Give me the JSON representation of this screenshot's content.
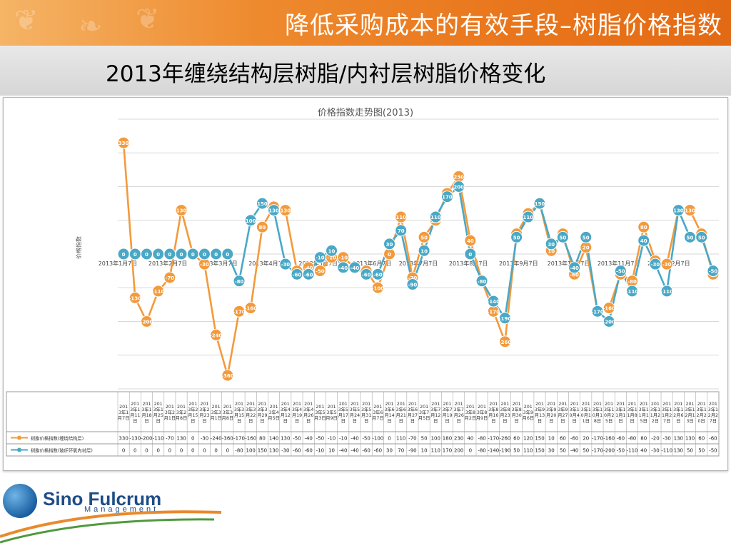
{
  "header": {
    "title": "降低采购成本的有效手段–树脂价格指数"
  },
  "subtitle": "2013年缠绕结构层树脂/内衬层树脂价格变化",
  "logo": {
    "name": "Sino Fulcrum",
    "sub": "Management"
  },
  "colors": {
    "series1": "#f39a3c",
    "series2": "#4aa8c6",
    "banner": "#ee8a2e"
  },
  "chart_data": {
    "type": "line",
    "title": "价格指数走势图(2013)",
    "ylabel": "价格指数",
    "ylim": [
      -400,
      400
    ],
    "x": [
      "2013年1月7日",
      "2013年1月11日",
      "2013年1月18日",
      "2013年1月25日",
      "2013年2月1日",
      "2013年2月8日",
      "2013年2月15日",
      "2013年2月23日",
      "2013年3月1日",
      "2013年3月8日",
      "2013年3月15日",
      "2013年3月22日",
      "2013年3月29日",
      "2013年4月5日",
      "2013年4月12日",
      "2013年4月19日",
      "2013年4月26日",
      "2013年5月3日",
      "2013年5月9日",
      "2013年5月17日",
      "2013年5月24日",
      "2013年5月31日",
      "2013年6月7日",
      "2013年6月14日",
      "2013年6月21日",
      "2013年6月27日",
      "2013年7月5日",
      "2013年7月12日",
      "2013年7月19日",
      "2013年7月26日",
      "2013年8月2日",
      "2013年8月9日",
      "2013年8月16日",
      "2013年8月23日",
      "2013年8月30日",
      "2013年9月6日",
      "2013年9月13日",
      "2013年9月20日",
      "2013年9月27日",
      "2013年10月4日",
      "2013年10月11日",
      "2013年10月18日",
      "2013年10月25日",
      "2013年11月1日",
      "2013年11月8日",
      "2013年11月15日",
      "2013年11月22日",
      "2013年11月27日",
      "2013年12月6日",
      "2013年12月13日",
      "2013年12月20日",
      "2013年12月27日"
    ],
    "table_labels": [
      "2013年1月7日",
      "2013年1月11日",
      "2013年1月18日",
      "2013年1月25日",
      "2013年2月1日",
      "2013年2月8日",
      "2013年2月15日",
      "2013年2月23日",
      "2013年3月1日",
      "2013年3月8日",
      "2013年3月15日",
      "2013年3月22日",
      "2013年3月29日",
      "2013年4月5日",
      "2013年4月12日",
      "2013年4月19日",
      "2013年4月26日",
      "2013年5月3日",
      "2013年5月9日",
      "2013年5月17日",
      "2013年5月24日",
      "2013年5月31日",
      "2013年6月7日",
      "2013年6月14日",
      "2013年6月21日",
      "2013年6月27日",
      "2013年7月5日",
      "2013年7月12日",
      "2013年7月19日",
      "2013年7月26日",
      "2013年8月2日",
      "2013年8月9日",
      "2013年8月16日",
      "2013年8月23日",
      "2013年8月30日",
      "2013年9月6日",
      "2013年9月13日",
      "2013年9月20日",
      "2013年9月27日",
      "2013年10月4日",
      "2013年10月11日",
      "2013年10月18日",
      "2013年10月25日",
      "2013年11月1日",
      "2013年11月8日",
      "2013年11月15日",
      "2013年11月22日",
      "2013年11月27日",
      "2013年12月6日",
      "2013年12月13日",
      "2013年12月20日",
      "2013年12月27日"
    ],
    "axis_labels": [
      "2013年1月7日",
      "2013年2月7日",
      "2013年3月7日",
      "2013年4月7日",
      "2013年5月7日",
      "2013年6月7日",
      "2013年7月7日",
      "2013年8月7日",
      "2013年9月7日",
      "2013年10月7日",
      "2013年11月7日",
      "2013年12月7日"
    ],
    "series": [
      {
        "name": "树脂价格指数(缠绕结构层)",
        "values": [
          330,
          -130,
          -200,
          -110,
          -70,
          130,
          0,
          -30,
          -240,
          -360,
          -170,
          -160,
          80,
          140,
          130,
          -50,
          -40,
          -50,
          -10,
          -10,
          -40,
          -50,
          -100,
          0,
          110,
          -70,
          50,
          100,
          180,
          230,
          40,
          -80,
          -170,
          -260,
          60,
          120,
          150,
          10,
          60,
          -60,
          20,
          -170,
          -160,
          -60,
          -80,
          80,
          -20,
          -30,
          130,
          130,
          60,
          -60
        ]
      },
      {
        "name": "树脂价格指数(玻纤环氧内衬层)",
        "values": [
          0,
          0,
          0,
          0,
          0,
          0,
          0,
          0,
          0,
          0,
          -80,
          100,
          150,
          130,
          -30,
          -60,
          -60,
          -10,
          10,
          -40,
          -40,
          -60,
          -60,
          30,
          70,
          -90,
          10,
          110,
          170,
          200,
          0,
          -80,
          -140,
          -190,
          50,
          110,
          150,
          30,
          50,
          -40,
          50,
          -170,
          -200,
          -50,
          -110,
          40,
          -30,
          -110,
          130,
          50,
          50,
          -50
        ]
      }
    ]
  }
}
